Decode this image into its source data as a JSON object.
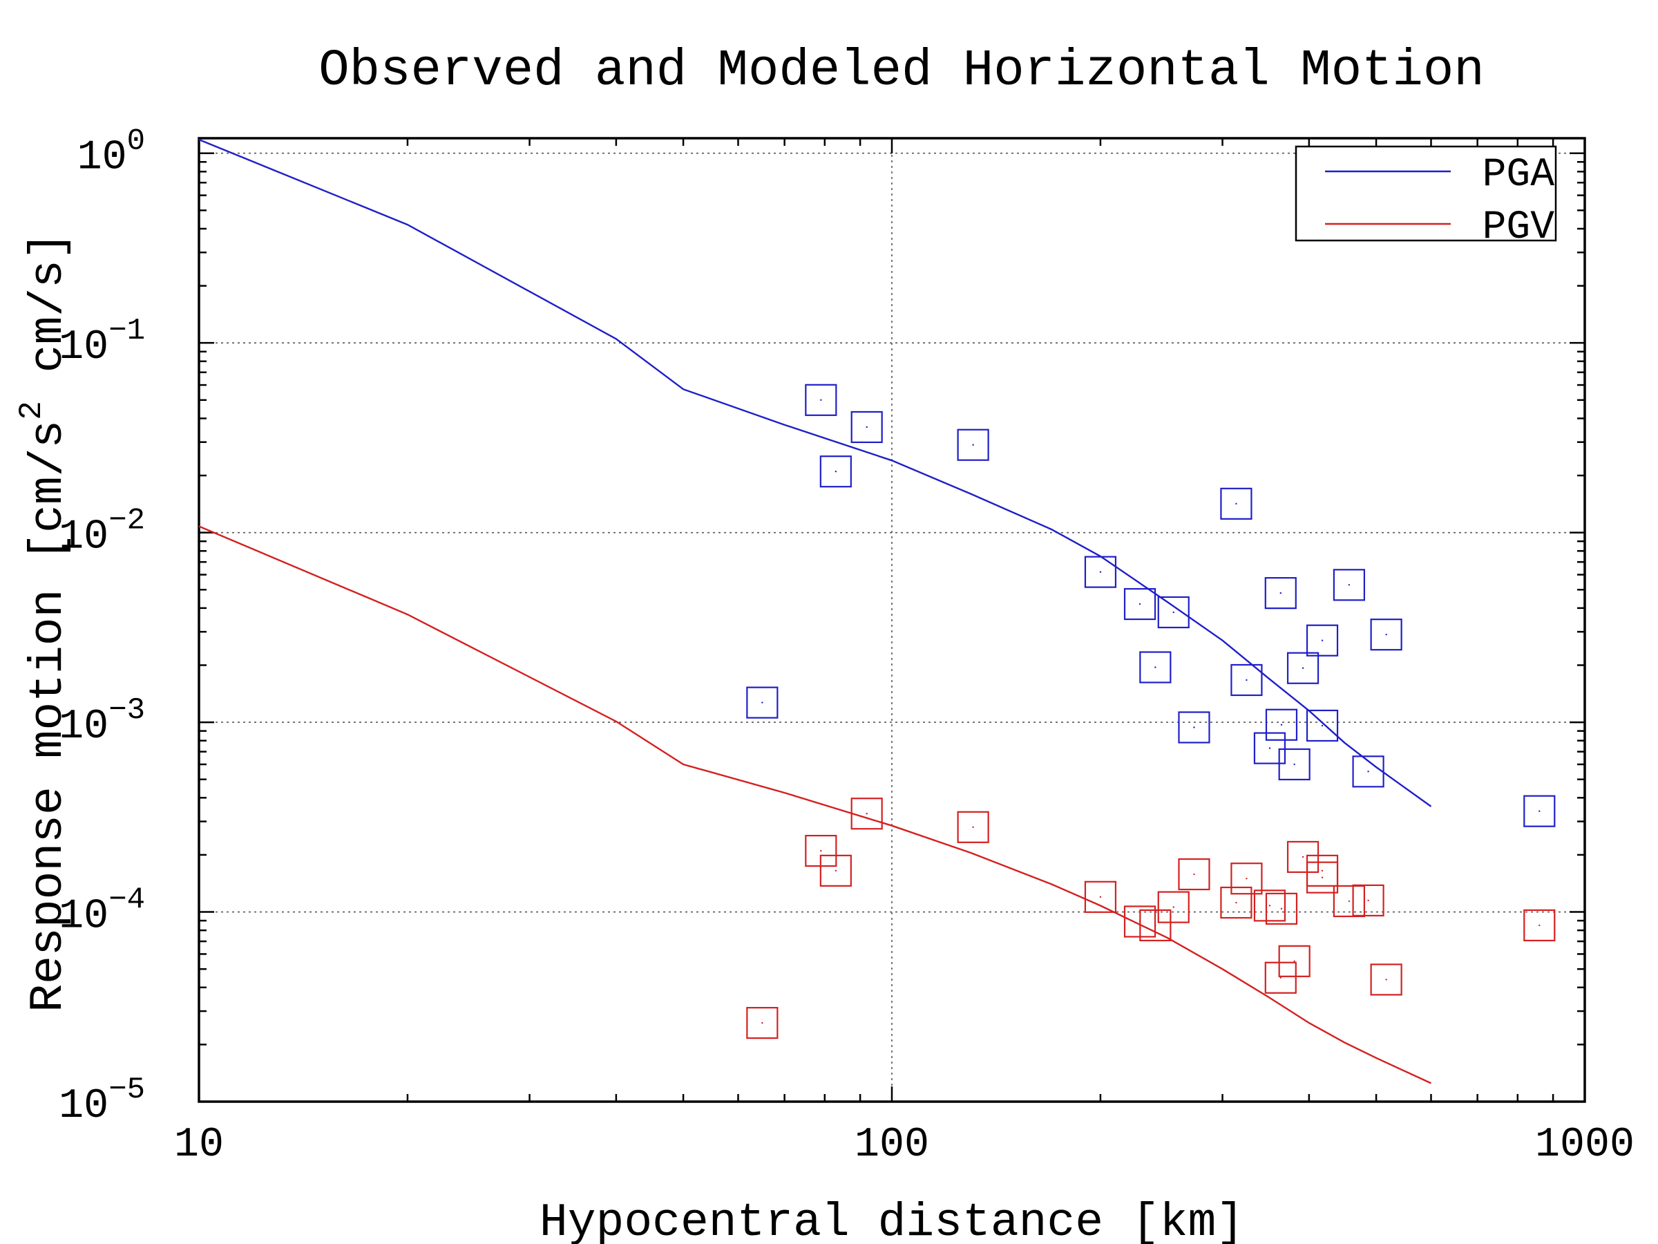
{
  "chart_data": {
    "type": "scatter",
    "title": "Observed and Modeled Horizontal Motion",
    "xlabel": "Hypocentral distance [km]",
    "ylabel": {
      "prefix": "Response motion  [cm/s",
      "sup": "2",
      "suffix": "  cm/s]"
    },
    "x_scale": "log",
    "y_scale": "log",
    "xlim": [
      10,
      1000
    ],
    "ylim": [
      1e-05,
      1.2
    ],
    "x_ticks": [
      {
        "value": 10,
        "label": "10"
      },
      {
        "value": 100,
        "label": "100"
      },
      {
        "value": 1000,
        "label": "1000"
      }
    ],
    "y_ticks": [
      {
        "value": 1,
        "base": "10",
        "exp": "0"
      },
      {
        "value": 0.1,
        "base": "10",
        "exp": "−1"
      },
      {
        "value": 0.01,
        "base": "10",
        "exp": "−2"
      },
      {
        "value": 0.001,
        "base": "10",
        "exp": "−3"
      },
      {
        "value": 0.0001,
        "base": "10",
        "exp": "−4"
      },
      {
        "value": 1e-05,
        "base": "10",
        "exp": "−5"
      }
    ],
    "grid": true,
    "legend_position": "top-right",
    "legend": [
      {
        "label": "PGA",
        "color": "#1f1fc8"
      },
      {
        "label": "PGV",
        "color": "#d42020"
      }
    ],
    "model_curves": [
      {
        "name": "PGA",
        "color": "#1f1fc8",
        "x": [
          10,
          20,
          40,
          50,
          70,
          100,
          130,
          170,
          200,
          250,
          300,
          350,
          400,
          450,
          500,
          600
        ],
        "y": [
          1.18,
          0.42,
          0.105,
          0.057,
          0.037,
          0.024,
          0.016,
          0.0104,
          0.0075,
          0.0043,
          0.0027,
          0.0017,
          0.00115,
          0.00078,
          0.00058,
          0.00036
        ]
      },
      {
        "name": "PGV",
        "color": "#d42020",
        "x": [
          10,
          20,
          40,
          50,
          70,
          100,
          130,
          170,
          200,
          250,
          300,
          350,
          400,
          450,
          500,
          600
        ],
        "y": [
          0.0108,
          0.0037,
          0.00101,
          0.0006,
          0.000425,
          0.000285,
          0.000205,
          0.00014,
          0.000108,
          7.3e-05,
          5e-05,
          3.55e-05,
          2.6e-05,
          2.05e-05,
          1.7e-05,
          1.25e-05
        ]
      }
    ],
    "observed": [
      {
        "name": "PGA",
        "color": "#1f1fc8",
        "points": [
          {
            "x": 65,
            "y": 0.00127
          },
          {
            "x": 79,
            "y": 0.05
          },
          {
            "x": 83,
            "y": 0.021
          },
          {
            "x": 92,
            "y": 0.036
          },
          {
            "x": 131,
            "y": 0.029
          },
          {
            "x": 200,
            "y": 0.0062
          },
          {
            "x": 228,
            "y": 0.0042
          },
          {
            "x": 240,
            "y": 0.00195
          },
          {
            "x": 255,
            "y": 0.0038
          },
          {
            "x": 273,
            "y": 0.00094
          },
          {
            "x": 314,
            "y": 0.0142
          },
          {
            "x": 325,
            "y": 0.00167
          },
          {
            "x": 351,
            "y": 0.00073
          },
          {
            "x": 365,
            "y": 0.00097
          },
          {
            "x": 364,
            "y": 0.0048
          },
          {
            "x": 381,
            "y": 0.0006
          },
          {
            "x": 392,
            "y": 0.00193
          },
          {
            "x": 418,
            "y": 0.00096
          },
          {
            "x": 418,
            "y": 0.0027
          },
          {
            "x": 457,
            "y": 0.0053
          },
          {
            "x": 487,
            "y": 0.00055
          },
          {
            "x": 517,
            "y": 0.0029
          },
          {
            "x": 860,
            "y": 0.00034
          }
        ]
      },
      {
        "name": "PGV",
        "color": "#d42020",
        "points": [
          {
            "x": 65,
            "y": 2.6e-05
          },
          {
            "x": 79,
            "y": 0.00021
          },
          {
            "x": 83,
            "y": 0.000165
          },
          {
            "x": 92,
            "y": 0.00033
          },
          {
            "x": 131,
            "y": 0.00028
          },
          {
            "x": 200,
            "y": 0.00012
          },
          {
            "x": 228,
            "y": 8.9e-05
          },
          {
            "x": 240,
            "y": 8.5e-05
          },
          {
            "x": 255,
            "y": 0.000106
          },
          {
            "x": 273,
            "y": 0.000158
          },
          {
            "x": 314,
            "y": 0.000112
          },
          {
            "x": 325,
            "y": 0.00015
          },
          {
            "x": 351,
            "y": 0.000108
          },
          {
            "x": 365,
            "y": 0.000104
          },
          {
            "x": 364,
            "y": 4.5e-05
          },
          {
            "x": 381,
            "y": 5.5e-05
          },
          {
            "x": 392,
            "y": 0.000195
          },
          {
            "x": 418,
            "y": 0.000152
          },
          {
            "x": 418,
            "y": 0.000165
          },
          {
            "x": 457,
            "y": 0.000114
          },
          {
            "x": 487,
            "y": 0.000115
          },
          {
            "x": 517,
            "y": 4.4e-05
          },
          {
            "x": 860,
            "y": 8.5e-05
          }
        ]
      }
    ]
  }
}
